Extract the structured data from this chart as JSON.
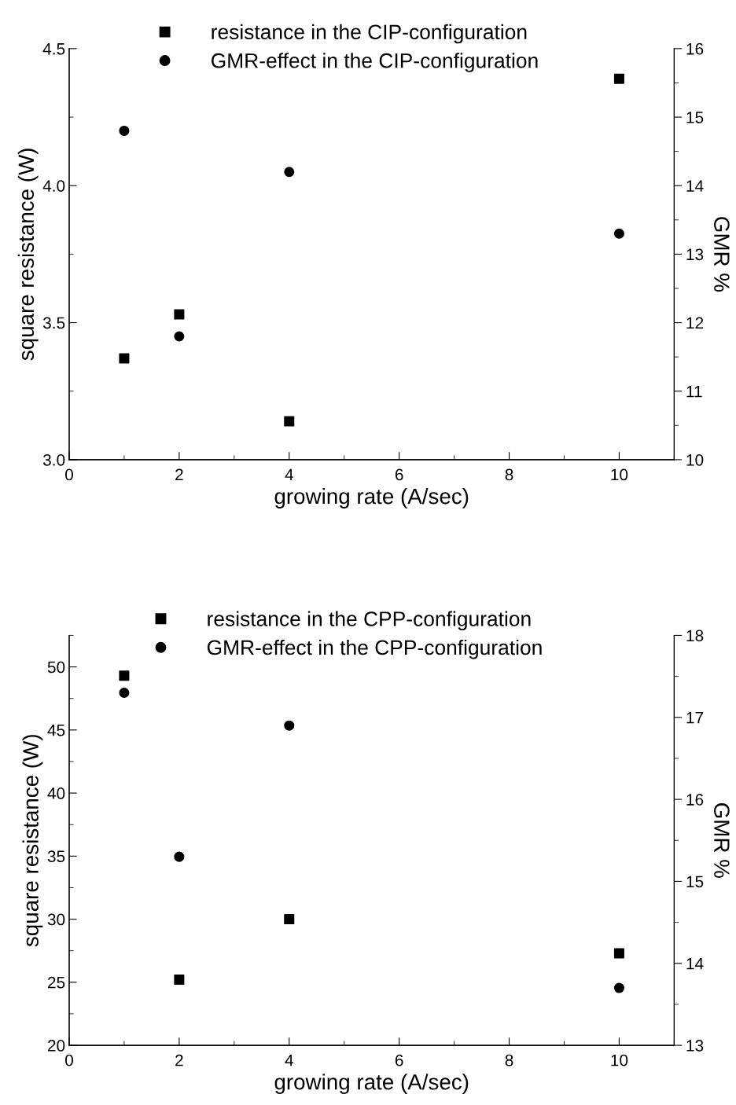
{
  "chart_data": [
    {
      "type": "scatter",
      "xlabel": "growing rate (A/sec)",
      "ylabel": "square resistance (W)",
      "y2label": "GMR %",
      "x": [
        1,
        2,
        4,
        10
      ],
      "series": [
        {
          "name": "resistance in the CIP-configuration",
          "color": "#000000",
          "marker": "square",
          "values": [
            3.37,
            3.53,
            3.14,
            4.39
          ]
        },
        {
          "name": "GMR-effect in the CIP-configuration",
          "color": "#000000",
          "marker": "circle",
          "axis": "y2",
          "values": [
            14.8,
            11.8,
            14.2,
            13.3
          ]
        }
      ],
      "xlim": [
        0,
        11
      ],
      "xticks": [
        0,
        2,
        4,
        6,
        8,
        10
      ],
      "ylim": [
        3.0,
        4.5
      ],
      "yticks": [
        {
          "value": 3.0,
          "label": "3.0"
        },
        {
          "value": 3.5,
          "label": "3.5"
        },
        {
          "value": 4.0,
          "label": "4.0"
        },
        {
          "value": 4.5,
          "label": "4.5"
        }
      ],
      "y2lim": [
        10,
        16
      ],
      "y2ticks": [
        10,
        11,
        12,
        13,
        14,
        15,
        16
      ],
      "legend": "top",
      "grid": false
    },
    {
      "type": "scatter",
      "xlabel": "growing rate (A/sec)",
      "ylabel": "square resistance (W)",
      "y2label": "GMR %",
      "x": [
        1,
        2,
        4,
        10
      ],
      "series": [
        {
          "name": "resistance in the CPP-configuration",
          "color": "#000000",
          "marker": "square",
          "values": [
            49.3,
            25.2,
            30.0,
            27.3
          ]
        },
        {
          "name": "GMR-effect in the CPP-configuration",
          "color": "#000000",
          "marker": "circle",
          "axis": "y2",
          "values": [
            17.3,
            15.3,
            16.9,
            13.7
          ]
        }
      ],
      "xlim": [
        0,
        11
      ],
      "xticks": [
        0,
        2,
        4,
        6,
        8,
        10
      ],
      "ylim": [
        20,
        52.5
      ],
      "yticks": [
        20,
        25,
        30,
        35,
        40,
        45,
        50
      ],
      "y2lim": [
        13,
        18
      ],
      "y2ticks": [
        13,
        14,
        15,
        16,
        17,
        18
      ],
      "legend": "top",
      "grid": false
    }
  ]
}
